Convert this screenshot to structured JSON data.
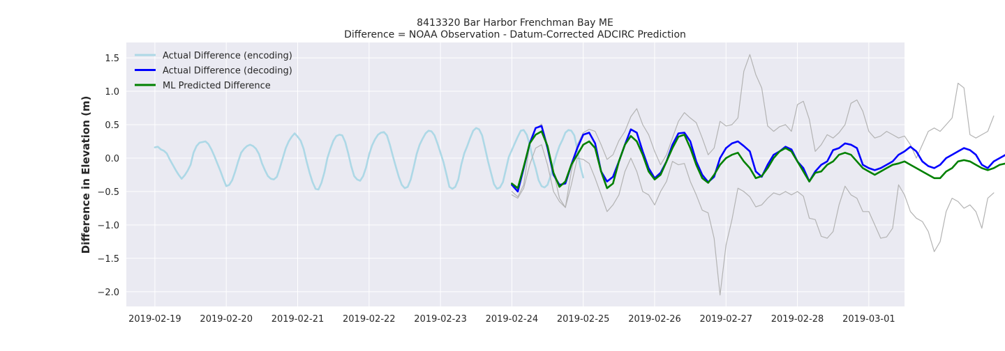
{
  "chart_data": {
    "type": "line",
    "title": "8413320 Bar Harbor Frenchman Bay ME",
    "subtitle": "Difference = NOAA Observation - Datum-Corrected ADCIRC Prediction",
    "xlabel": "",
    "ylabel": "Difference in Elevation (m)",
    "x_tick_labels": [
      "2019-02-19",
      "2019-02-20",
      "2019-02-21",
      "2019-02-22",
      "2019-02-23",
      "2019-02-24",
      "2019-02-25",
      "2019-02-26",
      "2019-02-27",
      "2019-02-28",
      "2019-03-01"
    ],
    "y_tick_labels": [
      "−2.0",
      "−1.5",
      "−1.0",
      "−0.5",
      "0.0",
      "0.5",
      "1.0",
      "1.5"
    ],
    "y_ticks": [
      -2.0,
      -1.5,
      -1.0,
      -0.5,
      0.0,
      0.5,
      1.0,
      1.5
    ],
    "ylim": [
      -2.22,
      1.73
    ],
    "xlim": [
      "2019-02-18T14:24",
      "2019-03-01T12:00"
    ],
    "grid": true,
    "legend_position": "upper-left",
    "colors": {
      "plot_background": "#eaeaf2",
      "grid": "#ffffff",
      "encoding": "#add8e6",
      "decoding": "#0000ff",
      "predicted": "#008000",
      "bounds": "#b3b3b3"
    },
    "series": [
      {
        "name": "Actual Difference (encoding)",
        "color": "#add8e6",
        "style": "line",
        "x_start": "2019-02-19T00:00",
        "x_step_hours": 1,
        "values": [
          0.16,
          0.17,
          0.13,
          0.11,
          0.07,
          -0.02,
          -0.1,
          -0.18,
          -0.25,
          -0.31,
          -0.26,
          -0.19,
          -0.1,
          0.08,
          0.18,
          0.23,
          0.24,
          0.25,
          0.21,
          0.13,
          0.03,
          -0.08,
          -0.19,
          -0.31,
          -0.42,
          -0.4,
          -0.33,
          -0.2,
          -0.05,
          0.08,
          0.14,
          0.18,
          0.2,
          0.18,
          0.14,
          0.06,
          -0.08,
          -0.18,
          -0.27,
          -0.31,
          -0.32,
          -0.28,
          -0.15,
          0.0,
          0.15,
          0.25,
          0.32,
          0.37,
          0.32,
          0.26,
          0.14,
          -0.05,
          -0.22,
          -0.36,
          -0.46,
          -0.47,
          -0.37,
          -0.21,
          0.0,
          0.14,
          0.26,
          0.33,
          0.35,
          0.34,
          0.24,
          0.07,
          -0.12,
          -0.27,
          -0.32,
          -0.34,
          -0.27,
          -0.14,
          0.05,
          0.19,
          0.28,
          0.35,
          0.38,
          0.39,
          0.34,
          0.2,
          0.03,
          -0.13,
          -0.28,
          -0.4,
          -0.45,
          -0.43,
          -0.32,
          -0.14,
          0.06,
          0.2,
          0.29,
          0.37,
          0.41,
          0.4,
          0.34,
          0.22,
          0.08,
          -0.06,
          -0.24,
          -0.43,
          -0.46,
          -0.43,
          -0.32,
          -0.1,
          0.07,
          0.18,
          0.3,
          0.41,
          0.45,
          0.43,
          0.34,
          0.15,
          -0.05,
          -0.22,
          -0.39,
          -0.46,
          -0.44,
          -0.36,
          -0.17,
          0.02,
          0.12,
          0.22,
          0.32,
          0.41,
          0.42,
          0.35,
          0.2,
          0.0,
          -0.15,
          -0.33,
          -0.42,
          -0.44,
          -0.4,
          -0.27,
          -0.1,
          0.05,
          0.18,
          0.27,
          0.38,
          0.42,
          0.41,
          0.34,
          0.13,
          -0.12,
          -0.29
        ]
      },
      {
        "name": "",
        "color": "#b3b3b3",
        "style": "thin",
        "x_start": "2019-02-24T00:00",
        "x_step_hours": 2,
        "values": [
          -0.5,
          -0.58,
          -0.4,
          0.2,
          0.44,
          0.51,
          0.2,
          -0.2,
          -0.6,
          -0.74,
          -0.2,
          0.2,
          0.38,
          0.43,
          0.4,
          0.2,
          -0.02,
          0.05,
          0.26,
          0.4,
          0.62,
          0.74,
          0.5,
          0.35,
          0.1,
          -0.1,
          0.05,
          0.3,
          0.55,
          0.68,
          0.6,
          0.53,
          0.3,
          0.05,
          0.15,
          0.55,
          0.48,
          0.5,
          0.6,
          1.3,
          1.55,
          1.25,
          1.05,
          0.48,
          0.4,
          0.47,
          0.5,
          0.4,
          0.8,
          0.85,
          0.58,
          0.1,
          0.2,
          0.35,
          0.3,
          0.38,
          0.5,
          0.82,
          0.87,
          0.7,
          0.4,
          0.3,
          0.33,
          0.4,
          0.35,
          0.3,
          0.33,
          0.2,
          0.0,
          0.2,
          0.4,
          0.45,
          0.4,
          0.5,
          0.6,
          1.12,
          1.05,
          0.35,
          0.3,
          0.35,
          0.4,
          0.63
        ]
      },
      {
        "name": "",
        "color": "#b3b3b3",
        "style": "thin",
        "x_start": "2019-02-24T00:00",
        "x_step_hours": 2,
        "values": [
          -0.55,
          -0.6,
          -0.45,
          -0.1,
          0.15,
          0.2,
          -0.1,
          -0.5,
          -0.65,
          -0.74,
          -0.4,
          0.0,
          -0.02,
          -0.08,
          -0.3,
          -0.55,
          -0.8,
          -0.7,
          -0.55,
          -0.2,
          0.0,
          -0.2,
          -0.5,
          -0.55,
          -0.7,
          -0.5,
          -0.35,
          -0.05,
          -0.1,
          -0.08,
          -0.35,
          -0.55,
          -0.78,
          -0.82,
          -1.2,
          -2.05,
          -1.3,
          -0.92,
          -0.45,
          -0.5,
          -0.58,
          -0.73,
          -0.7,
          -0.6,
          -0.52,
          -0.55,
          -0.5,
          -0.55,
          -0.5,
          -0.57,
          -0.9,
          -0.92,
          -1.17,
          -1.2,
          -1.1,
          -0.7,
          -0.42,
          -0.55,
          -0.6,
          -0.8,
          -0.8,
          -1.0,
          -1.2,
          -1.18,
          -1.05,
          -0.4,
          -0.55,
          -0.8,
          -0.9,
          -0.95,
          -1.1,
          -1.4,
          -1.25,
          -0.8,
          -0.6,
          -0.65,
          -0.75,
          -0.7,
          -0.8,
          -1.05,
          -0.6,
          -0.52
        ]
      },
      {
        "name": "Actual Difference (decoding)",
        "color": "#0000ff",
        "style": "line",
        "x_start": "2019-02-24T00:00",
        "x_step_hours": 2,
        "values": [
          -0.4,
          -0.5,
          -0.15,
          0.22,
          0.45,
          0.48,
          0.15,
          -0.25,
          -0.4,
          -0.38,
          -0.1,
          0.15,
          0.35,
          0.38,
          0.22,
          -0.2,
          -0.35,
          -0.28,
          -0.05,
          0.2,
          0.43,
          0.38,
          0.1,
          -0.15,
          -0.3,
          -0.22,
          -0.05,
          0.2,
          0.37,
          0.38,
          0.25,
          -0.05,
          -0.25,
          -0.36,
          -0.28,
          0.0,
          0.15,
          0.22,
          0.25,
          0.18,
          0.1,
          -0.2,
          -0.28,
          -0.1,
          0.05,
          0.1,
          0.17,
          0.13,
          -0.05,
          -0.15,
          -0.35,
          -0.2,
          -0.1,
          -0.05,
          0.12,
          0.15,
          0.22,
          0.2,
          0.15,
          -0.1,
          -0.15,
          -0.18,
          -0.15,
          -0.1,
          -0.05,
          0.05,
          0.1,
          0.17,
          0.1,
          -0.05,
          -0.12,
          -0.15,
          -0.1,
          0.0,
          0.05,
          0.1,
          0.15,
          0.12,
          0.05,
          -0.1,
          -0.15,
          -0.05,
          0.0,
          0.05,
          0.1,
          0.14
        ]
      },
      {
        "name": "ML Predicted Difference",
        "color": "#008000",
        "style": "line",
        "x_start": "2019-02-24T00:00",
        "x_step_hours": 2,
        "values": [
          -0.38,
          -0.45,
          -0.13,
          0.22,
          0.35,
          0.4,
          0.18,
          -0.22,
          -0.43,
          -0.35,
          -0.1,
          0.05,
          0.2,
          0.25,
          0.15,
          -0.2,
          -0.45,
          -0.38,
          -0.05,
          0.2,
          0.33,
          0.25,
          0.05,
          -0.2,
          -0.32,
          -0.25,
          -0.05,
          0.15,
          0.32,
          0.35,
          0.15,
          -0.1,
          -0.3,
          -0.37,
          -0.25,
          -0.1,
          0.0,
          0.05,
          0.08,
          -0.05,
          -0.15,
          -0.3,
          -0.27,
          -0.15,
          0.0,
          0.1,
          0.15,
          0.1,
          -0.05,
          -0.2,
          -0.35,
          -0.22,
          -0.2,
          -0.1,
          -0.05,
          0.05,
          0.08,
          0.05,
          -0.05,
          -0.15,
          -0.2,
          -0.25,
          -0.2,
          -0.15,
          -0.1,
          -0.08,
          -0.05,
          -0.1,
          -0.15,
          -0.2,
          -0.25,
          -0.3,
          -0.3,
          -0.2,
          -0.15,
          -0.05,
          -0.03,
          -0.05,
          -0.1,
          -0.15,
          -0.18,
          -0.15,
          -0.1,
          -0.08,
          -0.1,
          -0.06
        ]
      }
    ]
  }
}
